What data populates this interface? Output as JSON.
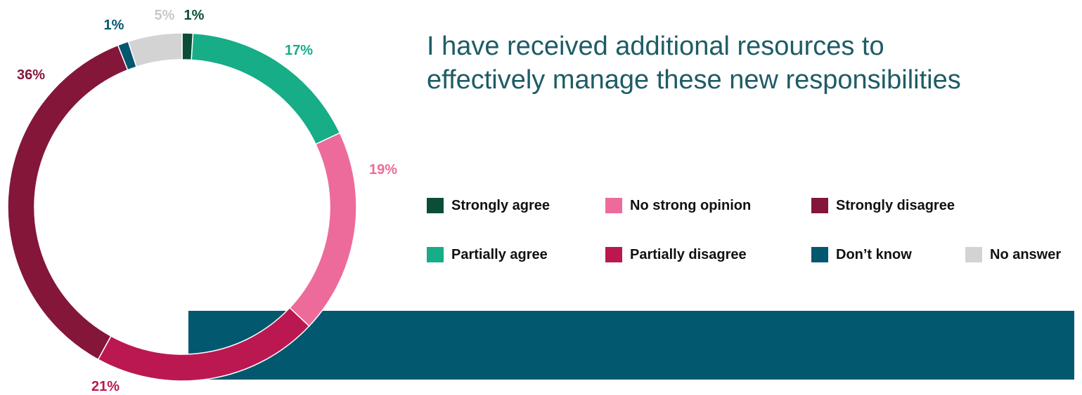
{
  "title": "I have received additional resources to effectively manage these new responsibilities",
  "colors": {
    "title": "#1e5c66",
    "band": "#02586e",
    "background": "#ffffff"
  },
  "legend": [
    {
      "label": "Strongly agree",
      "color": "#0b4d39"
    },
    {
      "label": "No strong opinion",
      "color": "#ed6b9a"
    },
    {
      "label": "Strongly disagree",
      "color": "#84163a"
    },
    {
      "label": "Partially agree",
      "color": "#16ad87"
    },
    {
      "label": "Partially disagree",
      "color": "#bb1852"
    },
    {
      "label": "Don’t know",
      "color": "#02586e"
    },
    {
      "label": "No answer",
      "color": "#d3d3d3"
    }
  ],
  "chart_data": {
    "type": "pie",
    "variant": "donut",
    "title": "I have received additional resources to effectively manage these new responsibilities",
    "legend_position": "right",
    "slices": [
      {
        "label": "Strongly agree",
        "value": 1,
        "display": "1%",
        "color": "#0b4d39"
      },
      {
        "label": "Partially agree",
        "value": 17,
        "display": "17%",
        "color": "#16ad87"
      },
      {
        "label": "No strong opinion",
        "value": 19,
        "display": "19%",
        "color": "#ed6b9a"
      },
      {
        "label": "Partially disagree",
        "value": 21,
        "display": "21%",
        "color": "#bb1852"
      },
      {
        "label": "Strongly disagree",
        "value": 36,
        "display": "36%",
        "color": "#84163a"
      },
      {
        "label": "Don’t know",
        "value": 1,
        "display": "1%",
        "color": "#02586e"
      },
      {
        "label": "No answer",
        "value": 5,
        "display": "5%",
        "color": "#d3d3d3"
      }
    ]
  }
}
